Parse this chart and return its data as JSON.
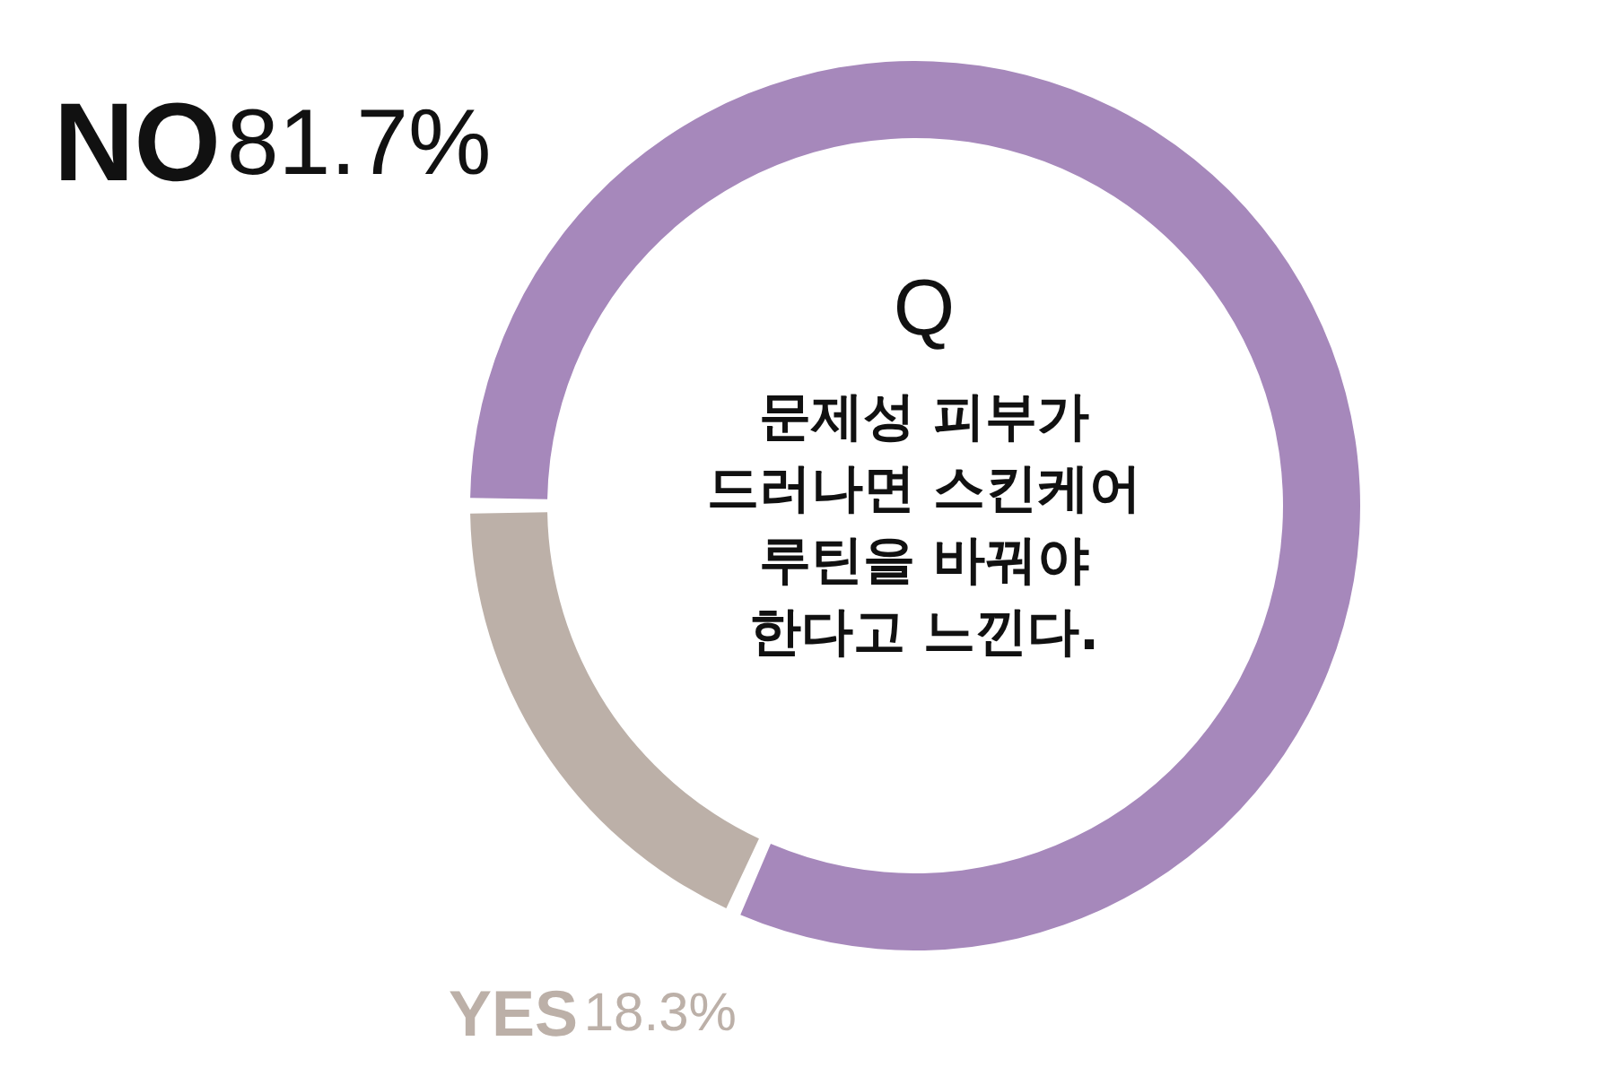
{
  "chart_data": {
    "type": "donut",
    "title": "Q",
    "subtitle": "문제성 피부가\n드러나면 스킨케어\n루틴을 바꿔야\n한다고 느낀다.",
    "categories": [
      "NO",
      "YES"
    ],
    "values": [
      81.7,
      18.3
    ],
    "value_labels": [
      "81.7%",
      "18.3%"
    ],
    "colors": [
      "#a688bb",
      "#bcb0a8"
    ]
  }
}
